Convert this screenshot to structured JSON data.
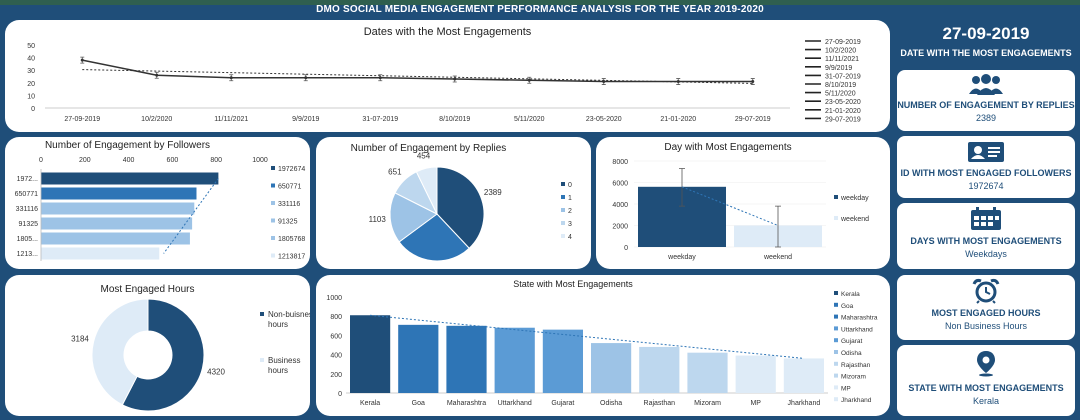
{
  "title": "DMO SOCIAL MEDIA ENGAGEMENT PERFORMANCE ANALYSIS FOR THE YEAR 2019-2020",
  "kpis": {
    "top_date": {
      "value": "27-09-2019",
      "label": "DATE WITH THE MOST ENGAGEMENTS"
    },
    "replies": {
      "label": "NUMBER OF ENGAGEMENT BY REPLIES",
      "value": "2389",
      "icon": "users-icon"
    },
    "followers": {
      "label": "ID WITH MOST ENGAGED FOLLOWERS",
      "value": "1972674",
      "icon": "id-card-icon"
    },
    "days": {
      "label": "DAYS WITH MOST ENGAGEMENTS",
      "value": "Weekdays",
      "icon": "calendar-icon"
    },
    "hours": {
      "label": "MOST ENGAGED HOURS",
      "value": "Non Business Hours",
      "icon": "alarm-clock-icon"
    },
    "state": {
      "label": "STATE WITH MOST ENGAGEMENTS",
      "value": "Kerala",
      "icon": "map-pin-icon"
    }
  },
  "colors": {
    "navy": "#1f4e79",
    "mid": "#2e75b6",
    "light": "#9dc3e6",
    "pale": "#deebf7"
  },
  "chart_data": [
    {
      "id": "dates",
      "type": "line",
      "title": "Dates with the Most Engagements",
      "categories": [
        "27-09-2019",
        "10/2/2020",
        "11/11/2021",
        "9/9/2019",
        "31-07-2019",
        "8/10/2019",
        "5/11/2020",
        "23-05-2020",
        "21-01-2020",
        "29-07-2019"
      ],
      "values": [
        38,
        26,
        24,
        24,
        24,
        23,
        22,
        21,
        21,
        21
      ],
      "ylim": [
        0,
        50
      ],
      "yticks": [
        0,
        10,
        20,
        30,
        40,
        50
      ],
      "legend": [
        "27-09-2019",
        "10/2/2020",
        "11/11/2021",
        "9/9/2019",
        "31-07-2019",
        "8/10/2019",
        "5/11/2020",
        "23-05-2020",
        "21-01-2020",
        "29-07-2019"
      ]
    },
    {
      "id": "followers",
      "type": "bar",
      "orientation": "horizontal",
      "title": "Number of Engagement by Followers",
      "categories": [
        "1972...",
        "650771",
        "331116",
        "91325",
        "1805...",
        "1213..."
      ],
      "values": [
        810,
        710,
        700,
        690,
        680,
        540
      ],
      "xlim": [
        0,
        1000
      ],
      "xticks": [
        0,
        200,
        400,
        600,
        800,
        1000
      ],
      "legend": [
        "1972674",
        "650771",
        "331116",
        "91325",
        "1805768",
        "1213817"
      ]
    },
    {
      "id": "replies",
      "type": "pie",
      "title": "Number of Engagement by Replies",
      "labels": [
        "0",
        "1",
        "2",
        "3",
        "4"
      ],
      "values": [
        2389,
        1692,
        1103,
        651,
        454
      ]
    },
    {
      "id": "day",
      "type": "bar",
      "title": "Day with Most Engagements",
      "categories": [
        "weekday",
        "weekend"
      ],
      "values": [
        5600,
        2000
      ],
      "err_high": [
        7300,
        3800
      ],
      "err_low": [
        3800,
        0
      ],
      "ylim": [
        0,
        8000
      ],
      "yticks": [
        0,
        2000,
        4000,
        6000,
        8000
      ],
      "legend": [
        "weekday",
        "weekend"
      ]
    },
    {
      "id": "hours",
      "type": "pie",
      "subtype": "donut",
      "title": "Most Engaged Hours",
      "labels": [
        "Non-buisness hours",
        "Business hours"
      ],
      "values": [
        4320,
        3184
      ]
    },
    {
      "id": "state",
      "type": "bar",
      "title": "State with Most Engagements",
      "categories": [
        "Kerala",
        "Goa",
        "Maharashtra",
        "Uttarkhand",
        "Gujarat",
        "Odisha",
        "Rajasthan",
        "Mizoram",
        "MP",
        "Jharkhand"
      ],
      "values": [
        810,
        710,
        700,
        680,
        660,
        520,
        480,
        420,
        390,
        360
      ],
      "ylim": [
        0,
        1000
      ],
      "yticks": [
        0,
        200,
        400,
        600,
        800,
        1000
      ],
      "legend": [
        "Kerala",
        "Goa",
        "Maharashtra",
        "Uttarkhand",
        "Gujarat",
        "Odisha",
        "Rajasthan",
        "Mizoram",
        "MP",
        "Jharkhand"
      ]
    }
  ]
}
